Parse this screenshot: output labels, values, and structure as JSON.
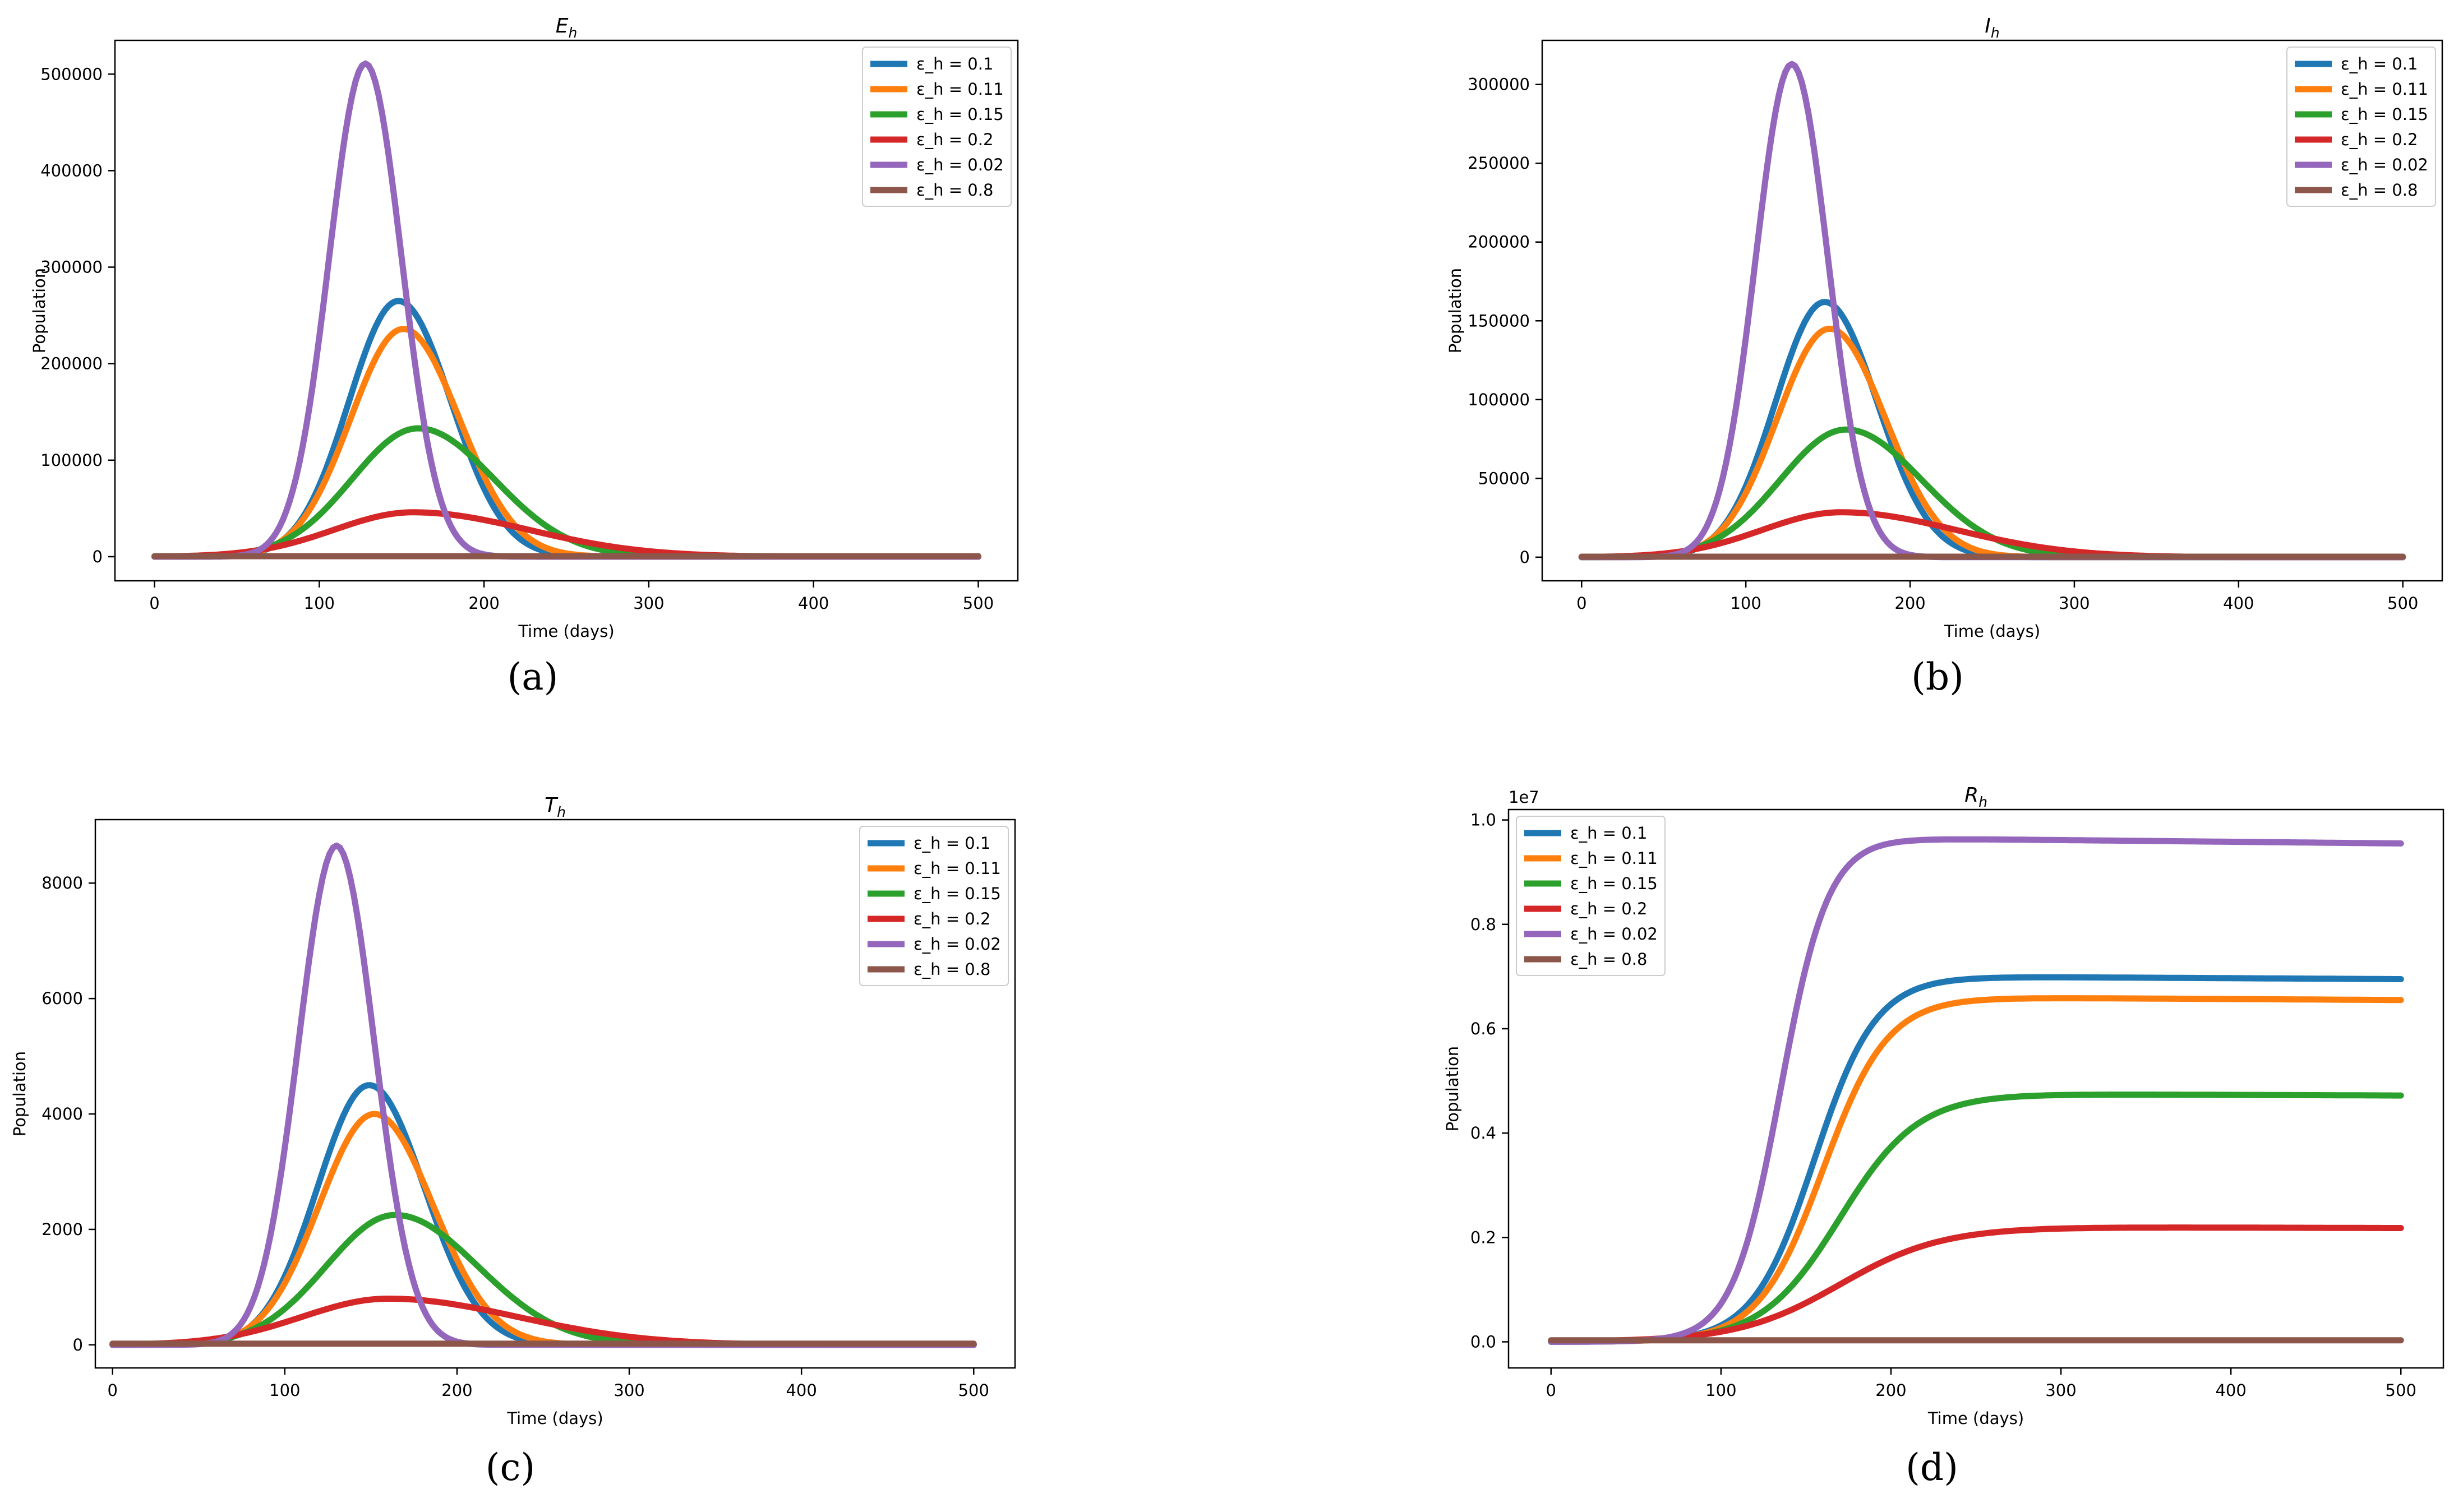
{
  "figure": {
    "legend_colors": {
      "blue": "#1f77b4",
      "orange": "#ff7f0e",
      "green": "#2ca02c",
      "red": "#d62728",
      "purple": "#9467bd",
      "brown": "#8c564b"
    }
  },
  "chart_data": [
    {
      "id": "a",
      "type": "line",
      "caption": "(a)",
      "title": {
        "main": "E",
        "sub": "h"
      },
      "xlabel": "Time (days)",
      "ylabel": "Population",
      "xlim": [
        -24,
        524
      ],
      "ylim": [
        -25000,
        535000
      ],
      "xticks": [
        0,
        100,
        200,
        300,
        400,
        500
      ],
      "xtick_labels": [
        "0",
        "100",
        "200",
        "300",
        "400",
        "500"
      ],
      "yticks": [
        0,
        100000,
        200000,
        300000,
        400000,
        500000
      ],
      "ytick_labels": [
        "0",
        "100000",
        "200000",
        "300000",
        "400000",
        "500000"
      ],
      "offset_label": "",
      "legend_position": "top-right",
      "series": [
        {
          "name": "ε_h = 0.1",
          "color": "#1f77b4",
          "shape": "pulse",
          "peak": 265000,
          "peak_day": 148,
          "rise_width": 30,
          "fall_width": 32,
          "base": 0
        },
        {
          "name": "ε_h = 0.11",
          "color": "#ff7f0e",
          "shape": "pulse",
          "peak": 236000,
          "peak_day": 151,
          "rise_width": 32,
          "fall_width": 34,
          "base": 0
        },
        {
          "name": "ε_h = 0.15",
          "color": "#2ca02c",
          "shape": "pulse",
          "peak": 133000,
          "peak_day": 160,
          "rise_width": 40,
          "fall_width": 46,
          "base": 0
        },
        {
          "name": "ε_h = 0.2",
          "color": "#d62728",
          "shape": "pulse",
          "peak": 46000,
          "peak_day": 157,
          "rise_width": 48,
          "fall_width": 70,
          "base": 0
        },
        {
          "name": "ε_h = 0.02",
          "color": "#9467bd",
          "shape": "pulse",
          "peak": 511000,
          "peak_day": 128,
          "rise_width": 22,
          "fall_width": 22,
          "base": 0
        },
        {
          "name": "ε_h = 0.8",
          "color": "#8c564b",
          "shape": "flat",
          "value": 500
        }
      ]
    },
    {
      "id": "b",
      "type": "line",
      "caption": "(b)",
      "title": {
        "main": "I",
        "sub": "h"
      },
      "xlabel": "Time (days)",
      "ylabel": "Population",
      "xlim": [
        -24,
        524
      ],
      "ylim": [
        -15000,
        328000
      ],
      "xticks": [
        0,
        100,
        200,
        300,
        400,
        500
      ],
      "xtick_labels": [
        "0",
        "100",
        "200",
        "300",
        "400",
        "500"
      ],
      "yticks": [
        0,
        50000,
        100000,
        150000,
        200000,
        250000,
        300000
      ],
      "ytick_labels": [
        "0",
        "50000",
        "100000",
        "150000",
        "200000",
        "250000",
        "300000"
      ],
      "offset_label": "",
      "legend_position": "top-right",
      "series": [
        {
          "name": "ε_h = 0.1",
          "color": "#1f77b4",
          "shape": "pulse",
          "peak": 162000,
          "peak_day": 148,
          "rise_width": 30,
          "fall_width": 32,
          "base": 0
        },
        {
          "name": "ε_h = 0.11",
          "color": "#ff7f0e",
          "shape": "pulse",
          "peak": 145000,
          "peak_day": 151,
          "rise_width": 32,
          "fall_width": 34,
          "base": 0
        },
        {
          "name": "ε_h = 0.15",
          "color": "#2ca02c",
          "shape": "pulse",
          "peak": 81000,
          "peak_day": 161,
          "rise_width": 40,
          "fall_width": 46,
          "base": 0
        },
        {
          "name": "ε_h = 0.2",
          "color": "#d62728",
          "shape": "pulse",
          "peak": 28500,
          "peak_day": 158,
          "rise_width": 48,
          "fall_width": 70,
          "base": 0
        },
        {
          "name": "ε_h = 0.02",
          "color": "#9467bd",
          "shape": "pulse",
          "peak": 313000,
          "peak_day": 128,
          "rise_width": 22,
          "fall_width": 22,
          "base": 0
        },
        {
          "name": "ε_h = 0.8",
          "color": "#8c564b",
          "shape": "flat",
          "value": 300
        }
      ]
    },
    {
      "id": "c",
      "type": "line",
      "caption": "(c)",
      "title": {
        "main": "T",
        "sub": "h"
      },
      "xlabel": "Time (days)",
      "ylabel": "Population",
      "xlim": [
        -10,
        524
      ],
      "ylim": [
        -400,
        9100
      ],
      "xticks": [
        0,
        100,
        200,
        300,
        400,
        500
      ],
      "xtick_labels": [
        "0",
        "100",
        "200",
        "300",
        "400",
        "500"
      ],
      "yticks": [
        0,
        2000,
        4000,
        6000,
        8000
      ],
      "ytick_labels": [
        "0",
        "2000",
        "4000",
        "6000",
        "8000"
      ],
      "offset_label": "",
      "legend_position": "top-right",
      "series": [
        {
          "name": "ε_h = 0.1",
          "color": "#1f77b4",
          "shape": "pulse",
          "peak": 4500,
          "peak_day": 149,
          "rise_width": 30,
          "fall_width": 32,
          "base": 0
        },
        {
          "name": "ε_h = 0.11",
          "color": "#ff7f0e",
          "shape": "pulse",
          "peak": 4000,
          "peak_day": 152,
          "rise_width": 32,
          "fall_width": 34,
          "base": 0
        },
        {
          "name": "ε_h = 0.15",
          "color": "#2ca02c",
          "shape": "pulse",
          "peak": 2250,
          "peak_day": 164,
          "rise_width": 40,
          "fall_width": 48,
          "base": 0
        },
        {
          "name": "ε_h = 0.2",
          "color": "#d62728",
          "shape": "pulse",
          "peak": 800,
          "peak_day": 160,
          "rise_width": 50,
          "fall_width": 75,
          "base": 0
        },
        {
          "name": "ε_h = 0.02",
          "color": "#9467bd",
          "shape": "pulse",
          "peak": 8650,
          "peak_day": 130,
          "rise_width": 22,
          "fall_width": 22,
          "base": 0
        },
        {
          "name": "ε_h = 0.8",
          "color": "#8c564b",
          "shape": "flat",
          "value": 20
        }
      ]
    },
    {
      "id": "d",
      "type": "line",
      "caption": "(d)",
      "title": {
        "main": "R",
        "sub": "h"
      },
      "xlabel": "Time (days)",
      "ylabel": "Population",
      "xlim": [
        -25,
        525
      ],
      "ylim": [
        -0.05,
        1.02
      ],
      "xticks": [
        0,
        100,
        200,
        300,
        400,
        500
      ],
      "xtick_labels": [
        "0",
        "100",
        "200",
        "300",
        "400",
        "500"
      ],
      "yticks": [
        0.0,
        0.2,
        0.4,
        0.6,
        0.8,
        1.0
      ],
      "ytick_labels": [
        "0.0",
        "0.2",
        "0.4",
        "0.6",
        "0.8",
        "1.0"
      ],
      "offset_label": "1e7",
      "legend_position": "top-left",
      "series": [
        {
          "name": "ε_h = 0.1",
          "color": "#1f77b4",
          "shape": "sigmoid",
          "plateau": 0.7,
          "end_value": 0.695,
          "mid_day": 155,
          "width": 18
        },
        {
          "name": "ε_h = 0.11",
          "color": "#ff7f0e",
          "shape": "sigmoid",
          "plateau": 0.66,
          "end_value": 0.655,
          "mid_day": 160,
          "width": 19
        },
        {
          "name": "ε_h = 0.15",
          "color": "#2ca02c",
          "shape": "sigmoid",
          "plateau": 0.475,
          "end_value": 0.472,
          "mid_day": 170,
          "width": 23
        },
        {
          "name": "ε_h = 0.2",
          "color": "#d62728",
          "shape": "sigmoid",
          "plateau": 0.22,
          "end_value": 0.218,
          "mid_day": 170,
          "width": 30
        },
        {
          "name": "ε_h = 0.02",
          "color": "#9467bd",
          "shape": "sigmoid",
          "plateau": 0.965,
          "end_value": 0.955,
          "mid_day": 135,
          "width": 14
        },
        {
          "name": "ε_h = 0.8",
          "color": "#8c564b",
          "shape": "flat",
          "value": 0.003
        }
      ]
    }
  ]
}
